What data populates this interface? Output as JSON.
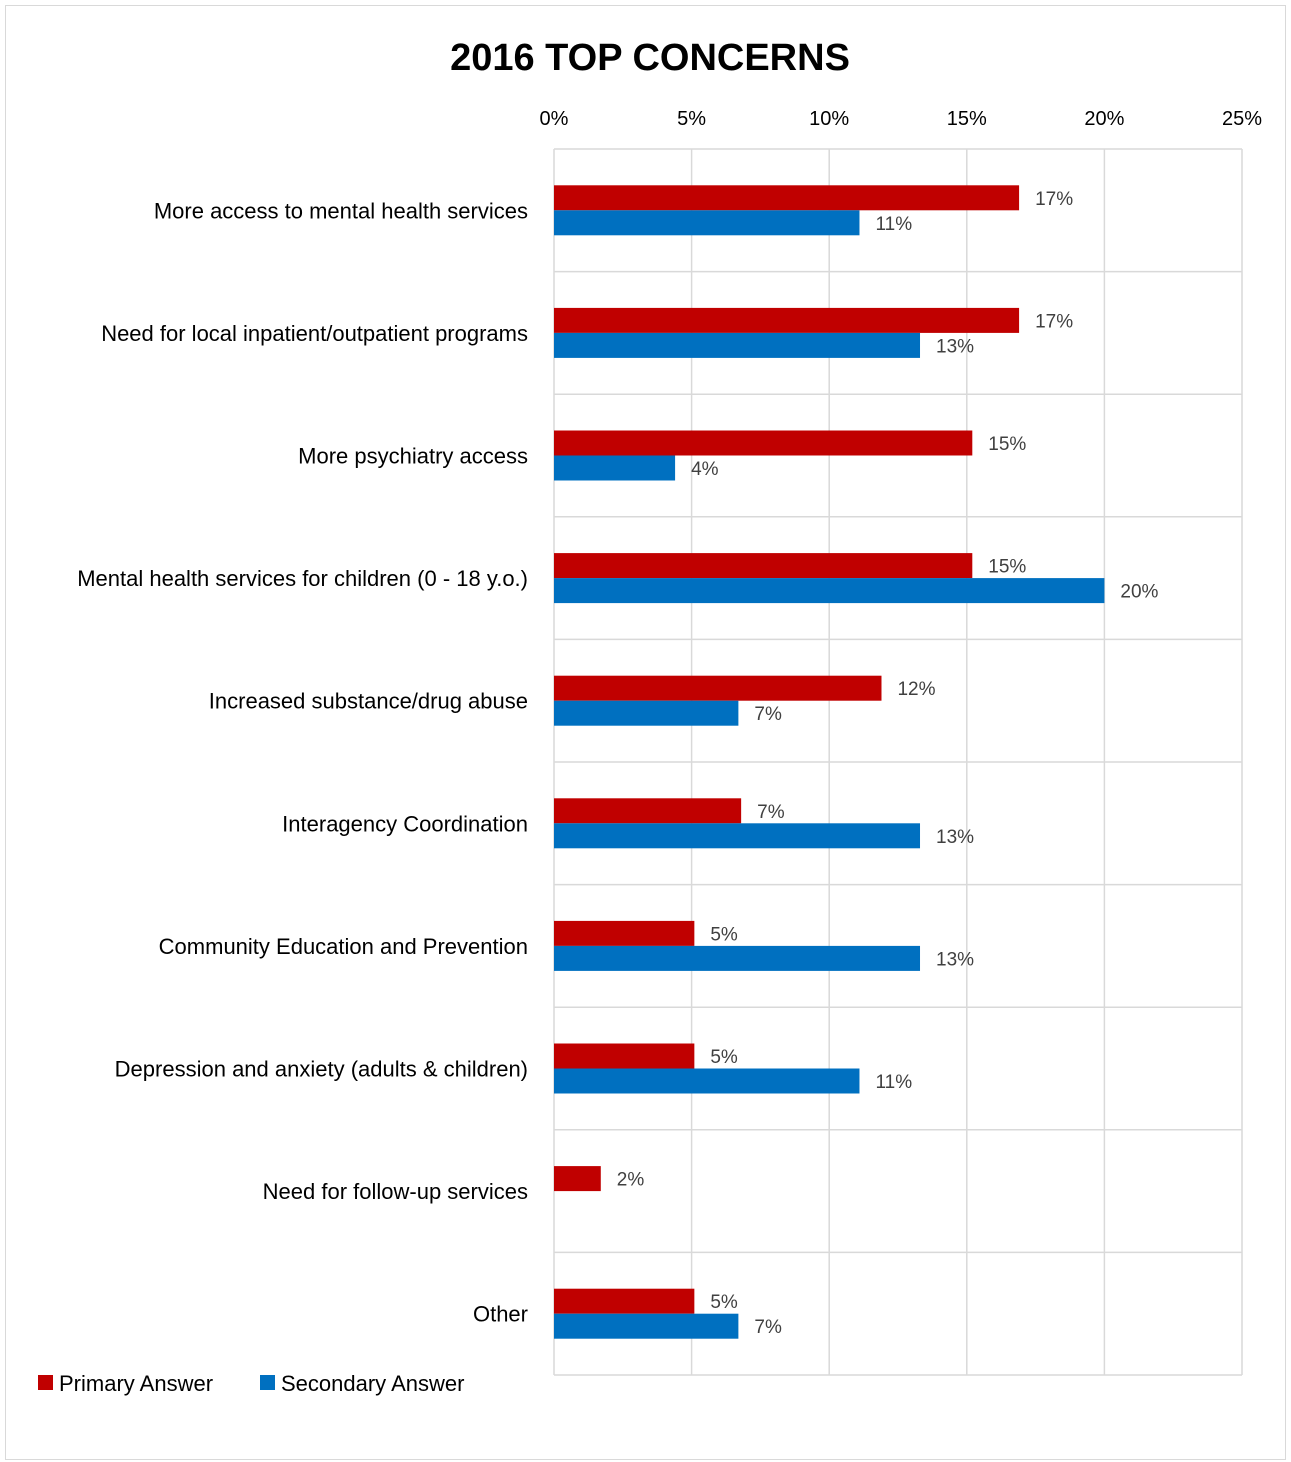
{
  "chart_data": {
    "type": "bar",
    "orientation": "horizontal",
    "title": "2016 TOP CONCERNS",
    "xlabel": "",
    "ylabel": "",
    "xlim": [
      0,
      25
    ],
    "x_ticks": [
      "0%",
      "5%",
      "10%",
      "15%",
      "20%",
      "25%"
    ],
    "x_axis_position": "top",
    "grid": true,
    "legend_position": "bottom-left",
    "categories": [
      "More access to mental health services",
      "Need for local inpatient/outpatient programs",
      "More psychiatry access",
      "Mental health services for children (0 - 18 y.o.)",
      "Increased substance/drug abuse",
      "Interagency Coordination",
      "Community Education and Prevention",
      "Depression and anxiety (adults & children)",
      "Need for follow-up services",
      "Other"
    ],
    "series": [
      {
        "name": "Primary Answer",
        "color": "#c00000",
        "values": [
          16.9,
          16.9,
          15.2,
          15.2,
          11.9,
          6.8,
          5.1,
          5.1,
          1.7,
          5.1
        ],
        "labels": [
          "17%",
          "17%",
          "15%",
          "15%",
          "12%",
          "7%",
          "5%",
          "5%",
          "2%",
          "5%"
        ]
      },
      {
        "name": "Secondary Answer",
        "color": "#0070c0",
        "values": [
          11.1,
          13.3,
          4.4,
          20.0,
          6.7,
          13.3,
          13.3,
          11.1,
          null,
          6.7
        ],
        "labels": [
          "11%",
          "13%",
          "4%",
          "20%",
          "7%",
          "13%",
          "13%",
          "11%",
          null,
          "7%"
        ]
      }
    ]
  }
}
